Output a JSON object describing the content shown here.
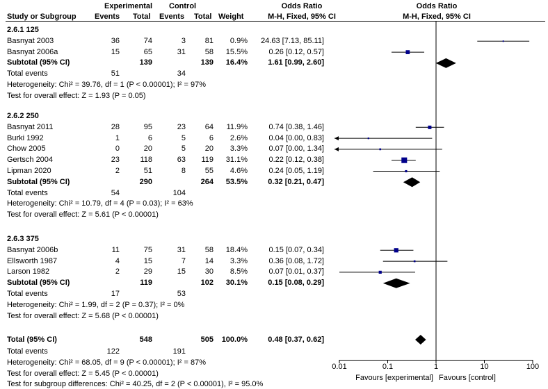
{
  "header": {
    "group1": "Experimental",
    "group2": "Control",
    "col_study": "Study or Subgroup",
    "col_events1": "Events",
    "col_total1": "Total",
    "col_events2": "Events",
    "col_total2": "Total",
    "col_weight": "Weight",
    "col_or_title": "Odds Ratio",
    "col_or_method": "M-H, Fixed, 95% CI",
    "plot_title": "Odds Ratio",
    "plot_method": "M-H, Fixed, 95% CI"
  },
  "subgroups": [
    {
      "title": "2.6.1 125",
      "studies": [
        {
          "name": "Basnyat 2003",
          "e1": "36",
          "n1": "74",
          "e2": "3",
          "n2": "81",
          "weight": "0.9%",
          "ci": "24.63 [7.13, 85.11]",
          "or": 24.63,
          "lo": 7.13,
          "hi": 85.11,
          "w": 0.9
        },
        {
          "name": "Basnyat 2006a",
          "e1": "15",
          "n1": "65",
          "e2": "31",
          "n2": "58",
          "weight": "15.5%",
          "ci": "0.26 [0.12, 0.57]",
          "or": 0.26,
          "lo": 0.12,
          "hi": 0.57,
          "w": 15.5
        }
      ],
      "subtotal": {
        "label": "Subtotal (95% CI)",
        "n1": "139",
        "n2": "139",
        "weight": "16.4%",
        "ci": "1.61 [0.99, 2.60]",
        "or": 1.61,
        "lo": 0.99,
        "hi": 2.6
      },
      "total_events_label": "Total events",
      "events1": "51",
      "events2": "34",
      "heterogeneity": "Heterogeneity: Chi² = 39.76, df = 1 (P < 0.00001); I² = 97%",
      "overall": "Test for overall effect: Z = 1.93 (P = 0.05)"
    },
    {
      "title": "2.6.2 250",
      "studies": [
        {
          "name": "Basnyat 2011",
          "e1": "28",
          "n1": "95",
          "e2": "23",
          "n2": "64",
          "weight": "11.9%",
          "ci": "0.74 [0.38, 1.46]",
          "or": 0.74,
          "lo": 0.38,
          "hi": 1.46,
          "w": 11.9
        },
        {
          "name": "Burki 1992",
          "e1": "1",
          "n1": "6",
          "e2": "5",
          "n2": "6",
          "weight": "2.6%",
          "ci": "0.04 [0.00, 0.83]",
          "or": 0.04,
          "lo": 0.001,
          "hi": 0.83,
          "w": 2.6
        },
        {
          "name": "Chow 2005",
          "e1": "0",
          "n1": "20",
          "e2": "5",
          "n2": "20",
          "weight": "3.3%",
          "ci": "0.07 [0.00, 1.34]",
          "or": 0.07,
          "lo": 0.001,
          "hi": 1.34,
          "w": 3.3
        },
        {
          "name": "Gertsch 2004",
          "e1": "23",
          "n1": "118",
          "e2": "63",
          "n2": "119",
          "weight": "31.1%",
          "ci": "0.22 [0.12, 0.38]",
          "or": 0.22,
          "lo": 0.12,
          "hi": 0.38,
          "w": 31.1
        },
        {
          "name": "Lipman 2020",
          "e1": "2",
          "n1": "51",
          "e2": "8",
          "n2": "55",
          "weight": "4.6%",
          "ci": "0.24 [0.05, 1.19]",
          "or": 0.24,
          "lo": 0.05,
          "hi": 1.19,
          "w": 4.6
        }
      ],
      "subtotal": {
        "label": "Subtotal (95% CI)",
        "n1": "290",
        "n2": "264",
        "weight": "53.5%",
        "ci": "0.32 [0.21, 0.47]",
        "or": 0.32,
        "lo": 0.21,
        "hi": 0.47
      },
      "total_events_label": "Total events",
      "events1": "54",
      "events2": "104",
      "heterogeneity": "Heterogeneity: Chi² = 10.79, df = 4 (P = 0.03); I² = 63%",
      "overall": "Test for overall effect: Z = 5.61 (P < 0.00001)"
    },
    {
      "title": "2.6.3 375",
      "studies": [
        {
          "name": "Basnyat 2006b",
          "e1": "11",
          "n1": "75",
          "e2": "31",
          "n2": "58",
          "weight": "18.4%",
          "ci": "0.15 [0.07, 0.34]",
          "or": 0.15,
          "lo": 0.07,
          "hi": 0.34,
          "w": 18.4
        },
        {
          "name": "Ellsworth 1987",
          "e1": "4",
          "n1": "15",
          "e2": "7",
          "n2": "14",
          "weight": "3.3%",
          "ci": "0.36 [0.08, 1.72]",
          "or": 0.36,
          "lo": 0.08,
          "hi": 1.72,
          "w": 3.3
        },
        {
          "name": "Larson 1982",
          "e1": "2",
          "n1": "29",
          "e2": "15",
          "n2": "30",
          "weight": "8.5%",
          "ci": "0.07 [0.01, 0.37]",
          "or": 0.07,
          "lo": 0.01,
          "hi": 0.37,
          "w": 8.5
        }
      ],
      "subtotal": {
        "label": "Subtotal (95% CI)",
        "n1": "119",
        "n2": "102",
        "weight": "30.1%",
        "ci": "0.15 [0.08, 0.29]",
        "or": 0.15,
        "lo": 0.08,
        "hi": 0.29
      },
      "total_events_label": "Total events",
      "events1": "17",
      "events2": "53",
      "heterogeneity": "Heterogeneity: Chi² = 1.99, df = 2 (P = 0.37); I² = 0%",
      "overall": "Test for overall effect: Z = 5.68 (P < 0.00001)"
    }
  ],
  "total": {
    "label": "Total (95% CI)",
    "n1": "548",
    "n2": "505",
    "weight": "100.0%",
    "ci": "0.48 [0.37, 0.62]",
    "or": 0.48,
    "lo": 0.37,
    "hi": 0.62,
    "events_label": "Total events",
    "events1": "122",
    "events2": "191",
    "heterogeneity": "Heterogeneity: Chi² = 68.05, df = 9 (P < 0.00001); I² = 87%",
    "overall": "Test for overall effect: Z = 5.45 (P < 0.00001)",
    "subgroup_diff": "Test for subgroup differences: Chi² = 40.25, df = 2 (P < 0.00001), I² = 95.0%"
  },
  "axis": {
    "ticks": [
      "0.01",
      "0.1",
      "1",
      "10",
      "100"
    ],
    "tick_values": [
      0.01,
      0.1,
      1,
      10,
      100
    ],
    "favours_left": "Favours [experimental]",
    "favours_right": "Favours [control]"
  },
  "colors": {
    "square": "#00008b",
    "diamond": "#000000",
    "line": "#000000"
  },
  "chart_data": {
    "type": "forest",
    "title": "Odds Ratio M-H, Fixed, 95% CI",
    "x_scale": "log",
    "xlim": [
      0.01,
      100
    ],
    "studies": [
      {
        "name": "Basnyat 2003",
        "or": 24.63,
        "lo": 7.13,
        "hi": 85.11,
        "weight": 0.9
      },
      {
        "name": "Basnyat 2006a",
        "or": 0.26,
        "lo": 0.12,
        "hi": 0.57,
        "weight": 15.5
      },
      {
        "name": "Basnyat 2011",
        "or": 0.74,
        "lo": 0.38,
        "hi": 1.46,
        "weight": 11.9
      },
      {
        "name": "Burki 1992",
        "or": 0.04,
        "lo": 0.0,
        "hi": 0.83,
        "weight": 2.6
      },
      {
        "name": "Chow 2005",
        "or": 0.07,
        "lo": 0.0,
        "hi": 1.34,
        "weight": 3.3
      },
      {
        "name": "Gertsch 2004",
        "or": 0.22,
        "lo": 0.12,
        "hi": 0.38,
        "weight": 31.1
      },
      {
        "name": "Lipman 2020",
        "or": 0.24,
        "lo": 0.05,
        "hi": 1.19,
        "weight": 4.6
      },
      {
        "name": "Basnyat 2006b",
        "or": 0.15,
        "lo": 0.07,
        "hi": 0.34,
        "weight": 18.4
      },
      {
        "name": "Ellsworth 1987",
        "or": 0.36,
        "lo": 0.08,
        "hi": 1.72,
        "weight": 3.3
      },
      {
        "name": "Larson 1982",
        "or": 0.07,
        "lo": 0.01,
        "hi": 0.37,
        "weight": 8.5
      }
    ],
    "subtotals": [
      {
        "name": "2.6.1 125",
        "or": 1.61,
        "lo": 0.99,
        "hi": 2.6
      },
      {
        "name": "2.6.2 250",
        "or": 0.32,
        "lo": 0.21,
        "hi": 0.47
      },
      {
        "name": "2.6.3 375",
        "or": 0.15,
        "lo": 0.08,
        "hi": 0.29
      }
    ],
    "total": {
      "or": 0.48,
      "lo": 0.37,
      "hi": 0.62
    }
  }
}
